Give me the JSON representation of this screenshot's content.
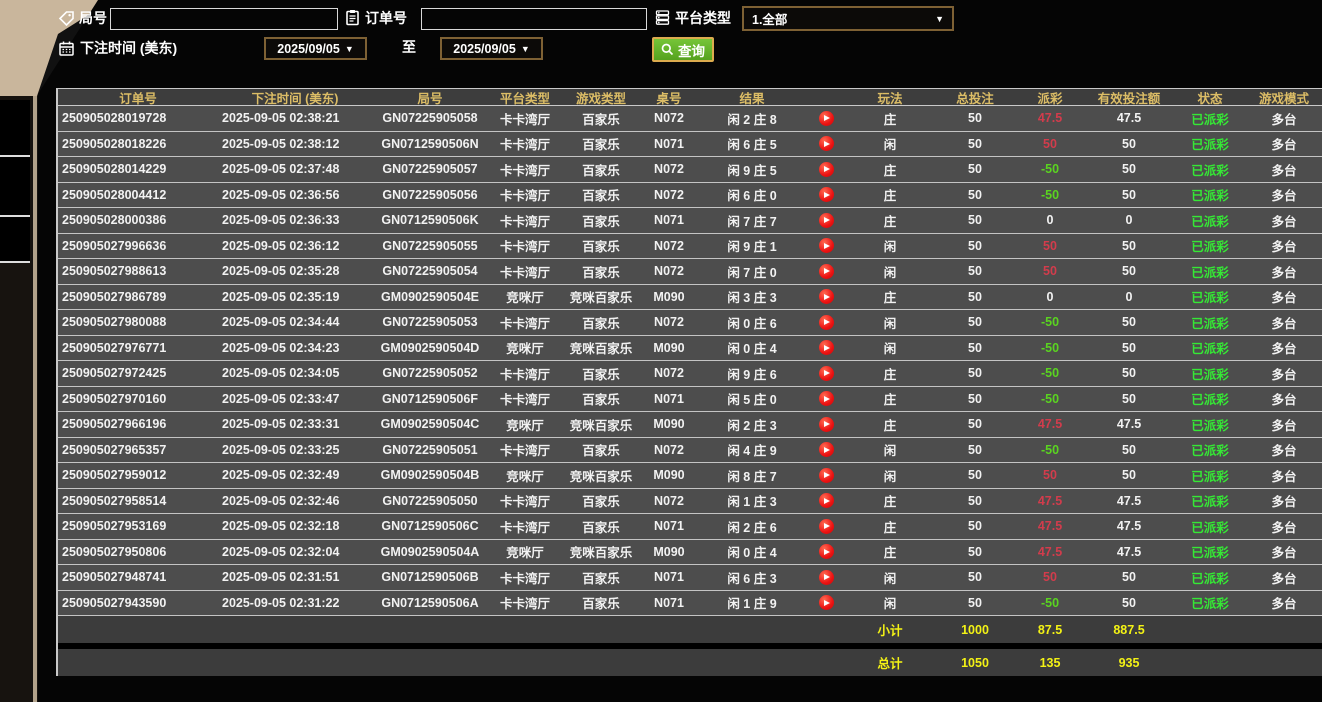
{
  "filters": {
    "round_label": "局号",
    "round_value": "",
    "order_label": "订单号",
    "order_value": "",
    "platform_label": "平台类型",
    "platform_value": "1.全部",
    "bet_time_label": "下注时间 (美东)",
    "date_from": "2025/09/05",
    "to_label": "至",
    "date_to": "2025/09/05",
    "query_label": "查询"
  },
  "icons": {
    "round": "tag-icon",
    "order": "clipboard-icon",
    "platform": "list-icon",
    "bet_time": "calendar-icon",
    "query": "search-icon",
    "dropdown": "chevron-down-icon",
    "replay": "play-icon"
  },
  "colors": {
    "header_gold": "#dcbd66",
    "win_red": "#d23c4c",
    "loss_green": "#5ad420",
    "status_green": "#35e835",
    "total_yellow": "#f3f215",
    "button_green": "#61b32a",
    "select_border_tan": "#7e6134"
  },
  "table": {
    "headers": [
      "订单号",
      "下注时间 (美东)",
      "局号",
      "平台类型",
      "游戏类型",
      "桌号",
      "结果",
      "",
      "玩法",
      "总投注",
      "派彩",
      "有效投注额",
      "状态",
      "游戏模式"
    ],
    "rows": [
      {
        "order": "250905028019728",
        "time": "2025-09-05 02:38:21",
        "round": "GN07225905058",
        "platform": "卡卡湾厅",
        "game": "百家乐",
        "table_no": "N072",
        "result": "闲 2 庄 8",
        "bet_type": "庄",
        "total_bet": "50",
        "payout": "47.5",
        "valid_bet": "47.5",
        "status": "已派彩",
        "mode": "多台"
      },
      {
        "order": "250905028018226",
        "time": "2025-09-05 02:38:12",
        "round": "GN0712590506N",
        "platform": "卡卡湾厅",
        "game": "百家乐",
        "table_no": "N071",
        "result": "闲 6 庄 5",
        "bet_type": "闲",
        "total_bet": "50",
        "payout": "50",
        "valid_bet": "50",
        "status": "已派彩",
        "mode": "多台"
      },
      {
        "order": "250905028014229",
        "time": "2025-09-05 02:37:48",
        "round": "GN07225905057",
        "platform": "卡卡湾厅",
        "game": "百家乐",
        "table_no": "N072",
        "result": "闲 9 庄 5",
        "bet_type": "庄",
        "total_bet": "50",
        "payout": "-50",
        "valid_bet": "50",
        "status": "已派彩",
        "mode": "多台"
      },
      {
        "order": "250905028004412",
        "time": "2025-09-05 02:36:56",
        "round": "GN07225905056",
        "platform": "卡卡湾厅",
        "game": "百家乐",
        "table_no": "N072",
        "result": "闲 6 庄 0",
        "bet_type": "庄",
        "total_bet": "50",
        "payout": "-50",
        "valid_bet": "50",
        "status": "已派彩",
        "mode": "多台"
      },
      {
        "order": "250905028000386",
        "time": "2025-09-05 02:36:33",
        "round": "GN0712590506K",
        "platform": "卡卡湾厅",
        "game": "百家乐",
        "table_no": "N071",
        "result": "闲 7 庄 7",
        "bet_type": "庄",
        "total_bet": "50",
        "payout": "0",
        "valid_bet": "0",
        "status": "已派彩",
        "mode": "多台"
      },
      {
        "order": "250905027996636",
        "time": "2025-09-05 02:36:12",
        "round": "GN07225905055",
        "platform": "卡卡湾厅",
        "game": "百家乐",
        "table_no": "N072",
        "result": "闲 9 庄 1",
        "bet_type": "闲",
        "total_bet": "50",
        "payout": "50",
        "valid_bet": "50",
        "status": "已派彩",
        "mode": "多台"
      },
      {
        "order": "250905027988613",
        "time": "2025-09-05 02:35:28",
        "round": "GN07225905054",
        "platform": "卡卡湾厅",
        "game": "百家乐",
        "table_no": "N072",
        "result": "闲 7 庄 0",
        "bet_type": "闲",
        "total_bet": "50",
        "payout": "50",
        "valid_bet": "50",
        "status": "已派彩",
        "mode": "多台"
      },
      {
        "order": "250905027986789",
        "time": "2025-09-05 02:35:19",
        "round": "GM0902590504E",
        "platform": "竞咪厅",
        "game": "竞咪百家乐",
        "table_no": "M090",
        "result": "闲 3 庄 3",
        "bet_type": "庄",
        "total_bet": "50",
        "payout": "0",
        "valid_bet": "0",
        "status": "已派彩",
        "mode": "多台"
      },
      {
        "order": "250905027980088",
        "time": "2025-09-05 02:34:44",
        "round": "GN07225905053",
        "platform": "卡卡湾厅",
        "game": "百家乐",
        "table_no": "N072",
        "result": "闲 0 庄 6",
        "bet_type": "闲",
        "total_bet": "50",
        "payout": "-50",
        "valid_bet": "50",
        "status": "已派彩",
        "mode": "多台"
      },
      {
        "order": "250905027976771",
        "time": "2025-09-05 02:34:23",
        "round": "GM0902590504D",
        "platform": "竞咪厅",
        "game": "竞咪百家乐",
        "table_no": "M090",
        "result": "闲 0 庄 4",
        "bet_type": "闲",
        "total_bet": "50",
        "payout": "-50",
        "valid_bet": "50",
        "status": "已派彩",
        "mode": "多台"
      },
      {
        "order": "250905027972425",
        "time": "2025-09-05 02:34:05",
        "round": "GN07225905052",
        "platform": "卡卡湾厅",
        "game": "百家乐",
        "table_no": "N072",
        "result": "闲 9 庄 6",
        "bet_type": "庄",
        "total_bet": "50",
        "payout": "-50",
        "valid_bet": "50",
        "status": "已派彩",
        "mode": "多台"
      },
      {
        "order": "250905027970160",
        "time": "2025-09-05 02:33:47",
        "round": "GN0712590506F",
        "platform": "卡卡湾厅",
        "game": "百家乐",
        "table_no": "N071",
        "result": "闲 5 庄 0",
        "bet_type": "庄",
        "total_bet": "50",
        "payout": "-50",
        "valid_bet": "50",
        "status": "已派彩",
        "mode": "多台"
      },
      {
        "order": "250905027966196",
        "time": "2025-09-05 02:33:31",
        "round": "GM0902590504C",
        "platform": "竞咪厅",
        "game": "竞咪百家乐",
        "table_no": "M090",
        "result": "闲 2 庄 3",
        "bet_type": "庄",
        "total_bet": "50",
        "payout": "47.5",
        "valid_bet": "47.5",
        "status": "已派彩",
        "mode": "多台"
      },
      {
        "order": "250905027965357",
        "time": "2025-09-05 02:33:25",
        "round": "GN07225905051",
        "platform": "卡卡湾厅",
        "game": "百家乐",
        "table_no": "N072",
        "result": "闲 4 庄 9",
        "bet_type": "闲",
        "total_bet": "50",
        "payout": "-50",
        "valid_bet": "50",
        "status": "已派彩",
        "mode": "多台"
      },
      {
        "order": "250905027959012",
        "time": "2025-09-05 02:32:49",
        "round": "GM0902590504B",
        "platform": "竞咪厅",
        "game": "竞咪百家乐",
        "table_no": "M090",
        "result": "闲 8 庄 7",
        "bet_type": "闲",
        "total_bet": "50",
        "payout": "50",
        "valid_bet": "50",
        "status": "已派彩",
        "mode": "多台"
      },
      {
        "order": "250905027958514",
        "time": "2025-09-05 02:32:46",
        "round": "GN07225905050",
        "platform": "卡卡湾厅",
        "game": "百家乐",
        "table_no": "N072",
        "result": "闲 1 庄 3",
        "bet_type": "庄",
        "total_bet": "50",
        "payout": "47.5",
        "valid_bet": "47.5",
        "status": "已派彩",
        "mode": "多台"
      },
      {
        "order": "250905027953169",
        "time": "2025-09-05 02:32:18",
        "round": "GN0712590506C",
        "platform": "卡卡湾厅",
        "game": "百家乐",
        "table_no": "N071",
        "result": "闲 2 庄 6",
        "bet_type": "庄",
        "total_bet": "50",
        "payout": "47.5",
        "valid_bet": "47.5",
        "status": "已派彩",
        "mode": "多台"
      },
      {
        "order": "250905027950806",
        "time": "2025-09-05 02:32:04",
        "round": "GM0902590504A",
        "platform": "竞咪厅",
        "game": "竞咪百家乐",
        "table_no": "M090",
        "result": "闲 0 庄 4",
        "bet_type": "庄",
        "total_bet": "50",
        "payout": "47.5",
        "valid_bet": "47.5",
        "status": "已派彩",
        "mode": "多台"
      },
      {
        "order": "250905027948741",
        "time": "2025-09-05 02:31:51",
        "round": "GN0712590506B",
        "platform": "卡卡湾厅",
        "game": "百家乐",
        "table_no": "N071",
        "result": "闲 6 庄 3",
        "bet_type": "闲",
        "total_bet": "50",
        "payout": "50",
        "valid_bet": "50",
        "status": "已派彩",
        "mode": "多台"
      },
      {
        "order": "250905027943590",
        "time": "2025-09-05 02:31:22",
        "round": "GN0712590506A",
        "platform": "卡卡湾厅",
        "game": "百家乐",
        "table_no": "N071",
        "result": "闲 1 庄 9",
        "bet_type": "闲",
        "total_bet": "50",
        "payout": "-50",
        "valid_bet": "50",
        "status": "已派彩",
        "mode": "多台"
      }
    ],
    "subtotal": {
      "label": "小计",
      "total_bet": "1000",
      "payout": "87.5",
      "valid_bet": "887.5"
    },
    "grand_total": {
      "label": "总计",
      "total_bet": "1050",
      "payout": "135",
      "valid_bet": "935"
    }
  }
}
